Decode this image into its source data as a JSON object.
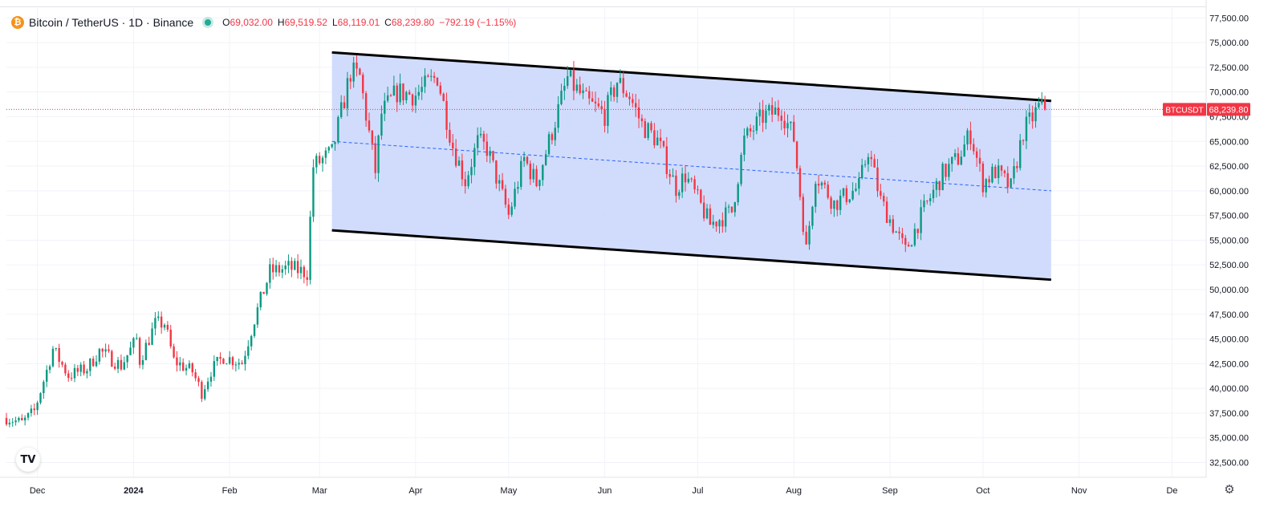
{
  "header": {
    "symbol_icon": "bitcoin-icon",
    "title": "Bitcoin / TetherUS · 1D · Binance",
    "status_color": "#22ab94",
    "ohlc": {
      "o_label": "O",
      "o": "69,032.00",
      "h_label": "H",
      "h": "69,519.52",
      "l_label": "L",
      "l": "68,119.01",
      "c_label": "C",
      "c": "68,239.80",
      "change": "−792.19 (−1.15%)"
    }
  },
  "price_tag": {
    "symbol": "BTCUSDT",
    "price": "68,239.80",
    "color": "#f23645"
  },
  "logo_text": "TV",
  "settings_icon": "gear-icon",
  "colors": {
    "up": "#089981",
    "down": "#f23645",
    "channel_fill": "#c9d6fb",
    "channel_line": "#000000",
    "midline": "#2962ff"
  },
  "chart_data": {
    "type": "candlestick",
    "title": "",
    "interval": "1D",
    "x_range": [
      "2023-11-21",
      "2024-12-12"
    ],
    "y_range": [
      31000,
      78500
    ],
    "grid": true,
    "y_ticks": [
      32500,
      35000,
      37500,
      40000,
      42500,
      45000,
      47500,
      50000,
      52500,
      55000,
      57500,
      60000,
      62500,
      65000,
      67500,
      70000,
      72500,
      75000,
      77500
    ],
    "y_tick_labels": [
      "32,500.00",
      "35,000.00",
      "37,500.00",
      "40,000.00",
      "42,500.00",
      "45,000.00",
      "47,500.00",
      "50,000.00",
      "52,500.00",
      "55,000.00",
      "57,500.00",
      "60,000.00",
      "62,500.00",
      "65,000.00",
      "67,500.00",
      "70,000.00",
      "72,500.00",
      "75,000.00",
      "77,500.00"
    ],
    "x_ticks": [
      {
        "date": "2023-12-01",
        "label": "Dec"
      },
      {
        "date": "2024-01-01",
        "label": "2024"
      },
      {
        "date": "2024-02-01",
        "label": "Feb"
      },
      {
        "date": "2024-03-01",
        "label": "Mar"
      },
      {
        "date": "2024-04-01",
        "label": "Apr"
      },
      {
        "date": "2024-05-01",
        "label": "May"
      },
      {
        "date": "2024-06-01",
        "label": "Jun"
      },
      {
        "date": "2024-07-01",
        "label": "Jul"
      },
      {
        "date": "2024-08-01",
        "label": "Aug"
      },
      {
        "date": "2024-09-01",
        "label": "Sep"
      },
      {
        "date": "2024-10-01",
        "label": "Oct"
      },
      {
        "date": "2024-11-01",
        "label": "Nov"
      },
      {
        "date": "2024-12-01",
        "label": "De"
      }
    ],
    "last_price": 68239.8,
    "price_path": [
      [
        "2023-11-21",
        37000
      ],
      [
        "2023-11-26",
        36500
      ],
      [
        "2023-11-30",
        37700
      ],
      [
        "2023-12-04",
        41800
      ],
      [
        "2023-12-06",
        44000
      ],
      [
        "2023-12-11",
        41300
      ],
      [
        "2023-12-17",
        42000
      ],
      [
        "2023-12-21",
        43800
      ],
      [
        "2023-12-28",
        42300
      ],
      [
        "2024-01-02",
        45000
      ],
      [
        "2024-01-03",
        42800
      ],
      [
        "2024-01-08",
        46500
      ],
      [
        "2024-01-11",
        46600
      ],
      [
        "2024-01-14",
        42800
      ],
      [
        "2024-01-20",
        41700
      ],
      [
        "2024-01-23",
        39600
      ],
      [
        "2024-01-26",
        41800
      ],
      [
        "2024-01-30",
        43200
      ],
      [
        "2024-02-05",
        42600
      ],
      [
        "2024-02-09",
        47000
      ],
      [
        "2024-02-14",
        51800
      ],
      [
        "2024-02-20",
        52200
      ],
      [
        "2024-02-26",
        51700
      ],
      [
        "2024-02-28",
        62500
      ],
      [
        "2024-03-05",
        63800
      ],
      [
        "2024-03-11",
        72000
      ],
      [
        "2024-03-14",
        71500
      ],
      [
        "2024-03-19",
        62000
      ],
      [
        "2024-03-21",
        67800
      ],
      [
        "2024-03-26",
        70000
      ],
      [
        "2024-04-01",
        69700
      ],
      [
        "2024-04-08",
        71600
      ],
      [
        "2024-04-13",
        64500
      ],
      [
        "2024-04-17",
        61000
      ],
      [
        "2024-04-21",
        64900
      ],
      [
        "2024-04-24",
        64300
      ],
      [
        "2024-05-01",
        57500
      ],
      [
        "2024-05-06",
        63200
      ],
      [
        "2024-05-10",
        60800
      ],
      [
        "2024-05-15",
        66000
      ],
      [
        "2024-05-20",
        71400
      ],
      [
        "2024-05-26",
        69000
      ],
      [
        "2024-06-01",
        67700
      ],
      [
        "2024-06-05",
        71100
      ],
      [
        "2024-06-09",
        69600
      ],
      [
        "2024-06-13",
        66700
      ],
      [
        "2024-06-18",
        65100
      ],
      [
        "2024-06-24",
        60300
      ],
      [
        "2024-06-27",
        61600
      ],
      [
        "2024-07-05",
        56600
      ],
      [
        "2024-07-12",
        57900
      ],
      [
        "2024-07-16",
        65100
      ],
      [
        "2024-07-22",
        67500
      ],
      [
        "2024-07-28",
        68200
      ],
      [
        "2024-08-01",
        65300
      ],
      [
        "2024-08-05",
        54000
      ],
      [
        "2024-08-08",
        61700
      ],
      [
        "2024-08-14",
        58700
      ],
      [
        "2024-08-22",
        60400
      ],
      [
        "2024-08-25",
        64200
      ],
      [
        "2024-08-29",
        59000
      ],
      [
        "2024-09-06",
        53900
      ],
      [
        "2024-09-12",
        58100
      ],
      [
        "2024-09-18",
        61700
      ],
      [
        "2024-09-23",
        63300
      ],
      [
        "2024-09-27",
        65800
      ],
      [
        "2024-10-01",
        60800
      ],
      [
        "2024-10-05",
        62000
      ],
      [
        "2024-10-10",
        60300
      ],
      [
        "2024-10-14",
        66000
      ],
      [
        "2024-10-19",
        68400
      ],
      [
        "2024-10-21",
        68239.8
      ]
    ],
    "channel": {
      "upper": [
        [
          "2024-03-05",
          74000
        ],
        [
          "2024-10-23",
          69100
        ]
      ],
      "lower": [
        [
          "2024-03-05",
          56000
        ],
        [
          "2024-10-23",
          51000
        ]
      ],
      "mid": [
        [
          "2024-03-05",
          65000
        ],
        [
          "2024-10-23",
          60000
        ]
      ]
    },
    "current_price_line": 68239.8
  }
}
